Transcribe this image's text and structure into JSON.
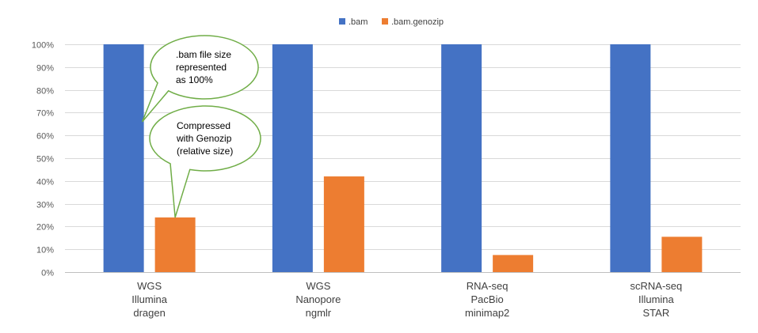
{
  "chart_data": {
    "type": "bar",
    "title": "",
    "xlabel": "",
    "ylabel": "",
    "ylim": [
      0,
      100
    ],
    "ytick_step": 10,
    "ytick_suffix": "%",
    "grid": true,
    "legend_position": "top-center",
    "categories": [
      [
        "WGS",
        "Illumina",
        "dragen"
      ],
      [
        "WGS",
        "Nanopore",
        "ngmlr"
      ],
      [
        "RNA-seq",
        "PacBio",
        "minimap2"
      ],
      [
        "scRNA-seq",
        "Illumina",
        "STAR"
      ]
    ],
    "series": [
      {
        "name": ".bam",
        "color": "#4472C4",
        "values": [
          100,
          100,
          100,
          100
        ]
      },
      {
        "name": ".bam.genozip",
        "color": "#ED7D31",
        "values": [
          24,
          42,
          7.5,
          15.5
        ]
      }
    ],
    "annotations": [
      {
        "lines": [
          ".bam file size",
          "represented",
          "as 100%"
        ],
        "border_color": "#70AD47",
        "points_to_series": ".bam",
        "points_to_category": 0,
        "points_to_value": 66
      },
      {
        "lines": [
          "Compressed",
          "with Genozip",
          "(relative size)"
        ],
        "border_color": "#70AD47",
        "points_to_series": ".bam.genozip",
        "points_to_category": 0,
        "points_to_value": 24
      }
    ]
  }
}
